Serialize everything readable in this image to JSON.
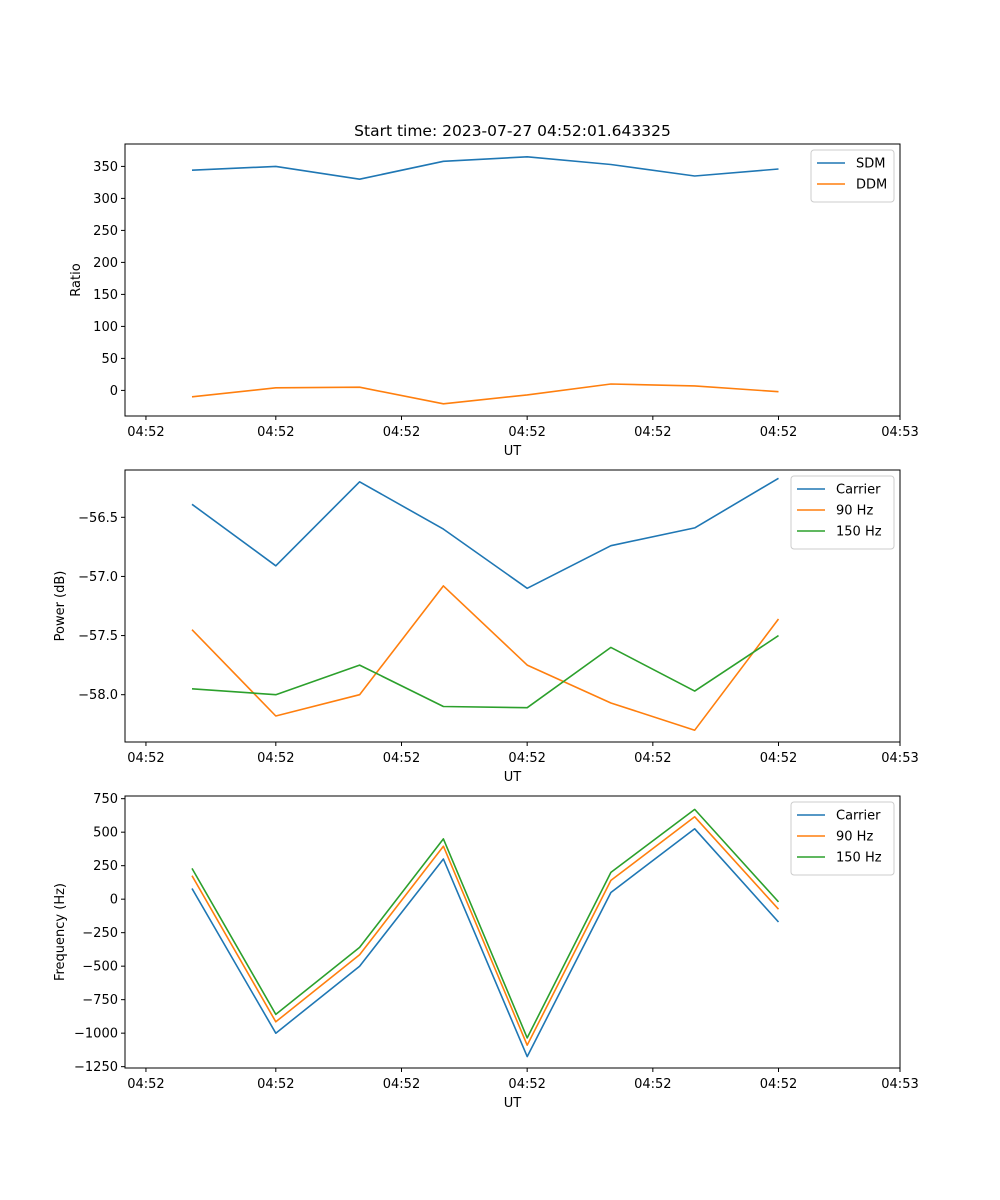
{
  "figure": {
    "title": "Start time: 2023-07-27 04:52:01.643325"
  },
  "chart_data": [
    {
      "type": "line",
      "title": "Start time: 2023-07-27 04:52:01.643325",
      "xlabel": "UT",
      "ylabel": "Ratio",
      "x": [
        1,
        2,
        3,
        4,
        5,
        6,
        7,
        8
      ],
      "xlim": [
        0.2,
        9.45
      ],
      "xticks": [
        0.45,
        2,
        3.5,
        5,
        6.5,
        8,
        9.45
      ],
      "xtick_labels": [
        "04:52",
        "04:52",
        "04:52",
        "04:52",
        "04:52",
        "04:52",
        "04:53"
      ],
      "ylim": [
        -40,
        385
      ],
      "yticks": [
        0,
        50,
        100,
        150,
        200,
        250,
        300,
        350
      ],
      "ytick_labels": [
        "0",
        "50",
        "100",
        "150",
        "200",
        "250",
        "300",
        "350"
      ],
      "legend": "top-right",
      "series": [
        {
          "name": "SDM",
          "color": "#1f77b4",
          "values": [
            344,
            350,
            330,
            358,
            365,
            353,
            335,
            346
          ]
        },
        {
          "name": "DDM",
          "color": "#ff7f0e",
          "values": [
            -10,
            4,
            5,
            -21,
            -7,
            10,
            7,
            -2
          ]
        }
      ]
    },
    {
      "type": "line",
      "xlabel": "UT",
      "ylabel": "Power (dB)",
      "x": [
        1,
        2,
        3,
        4,
        5,
        6,
        7,
        8
      ],
      "xlim": [
        0.2,
        9.45
      ],
      "xticks": [
        0.45,
        2,
        3.5,
        5,
        6.5,
        8,
        9.45
      ],
      "xtick_labels": [
        "04:52",
        "04:52",
        "04:52",
        "04:52",
        "04:52",
        "04:52",
        "04:53"
      ],
      "ylim": [
        -58.4,
        -56.1
      ],
      "yticks": [
        -58.0,
        -57.5,
        -57.0,
        -56.5
      ],
      "ytick_labels": [
        "−58.0",
        "−57.5",
        "−57.0",
        "−56.5"
      ],
      "legend": "top-right",
      "series": [
        {
          "name": "Carrier",
          "color": "#1f77b4",
          "values": [
            -56.39,
            -56.91,
            -56.2,
            -56.6,
            -57.1,
            -56.74,
            -56.59,
            -56.17
          ]
        },
        {
          "name": "90 Hz",
          "color": "#ff7f0e",
          "values": [
            -57.45,
            -58.18,
            -58.0,
            -57.08,
            -57.75,
            -58.07,
            -58.3,
            -57.36
          ]
        },
        {
          "name": "150 Hz",
          "color": "#2ca02c",
          "values": [
            -57.95,
            -58.0,
            -57.75,
            -58.1,
            -58.11,
            -57.6,
            -57.97,
            -57.5
          ]
        }
      ]
    },
    {
      "type": "line",
      "xlabel": "UT",
      "ylabel": "Frequency (Hz)",
      "x": [
        1,
        2,
        3,
        4,
        5,
        6,
        7,
        8
      ],
      "xlim": [
        0.2,
        9.45
      ],
      "xticks": [
        0.45,
        2,
        3.5,
        5,
        6.5,
        8,
        9.45
      ],
      "xtick_labels": [
        "04:52",
        "04:52",
        "04:52",
        "04:52",
        "04:52",
        "04:52",
        "04:53"
      ],
      "ylim": [
        -1260,
        770
      ],
      "yticks": [
        -1250,
        -1000,
        -750,
        -500,
        -250,
        0,
        250,
        500,
        750
      ],
      "ytick_labels": [
        "−1250",
        "−1000",
        "−750",
        "−500",
        "−250",
        "0",
        "250",
        "500",
        "750"
      ],
      "legend": "top-right",
      "series": [
        {
          "name": "Carrier",
          "color": "#1f77b4",
          "values": [
            80,
            -1000,
            -500,
            300,
            -1175,
            50,
            525,
            -170
          ]
        },
        {
          "name": "90 Hz",
          "color": "#ff7f0e",
          "values": [
            175,
            -915,
            -415,
            395,
            -1090,
            140,
            615,
            -75
          ]
        },
        {
          "name": "150 Hz",
          "color": "#2ca02c",
          "values": [
            230,
            -860,
            -360,
            450,
            -1035,
            200,
            670,
            -20
          ]
        }
      ]
    }
  ]
}
